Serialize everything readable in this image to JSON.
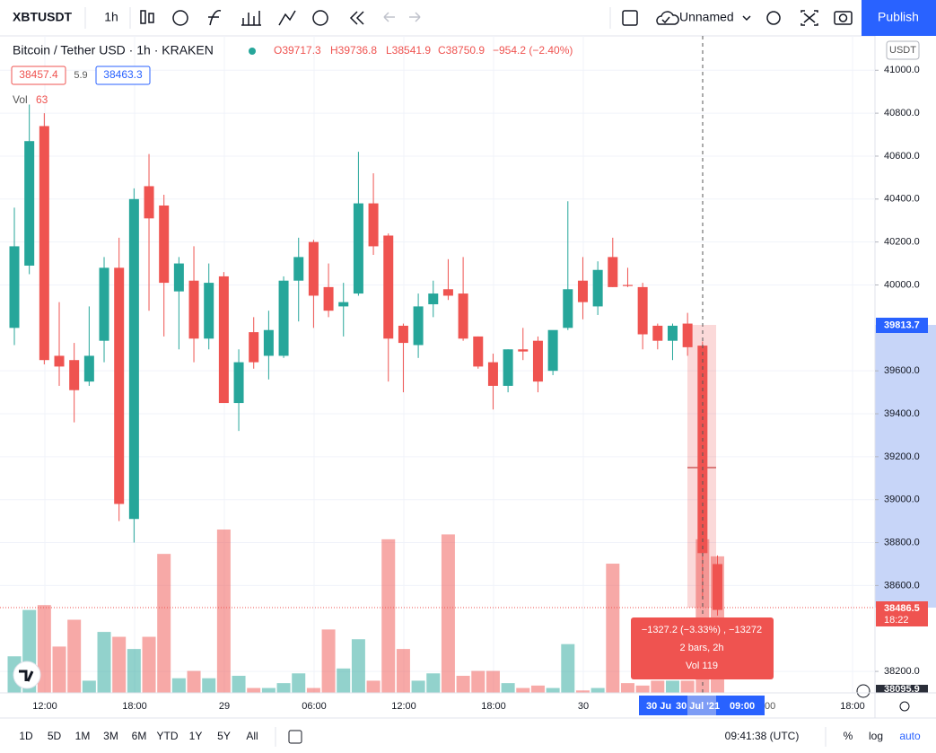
{
  "toolbar": {
    "symbol": "XBTUSDT",
    "interval": "1h",
    "layout": "Unnamed",
    "publish": "Publish"
  },
  "legend": {
    "title": "Bitcoin / Tether USD · 1h · KRAKEN",
    "open": "O39717.3",
    "high": "H39736.8",
    "low": "L38541.9",
    "close": "C38750.9",
    "change": "−954.2 (−2.40%)",
    "bid": "38457.4",
    "spread": "5.9",
    "ask": "38463.3",
    "vol_label": "Vol",
    "vol_value": "63",
    "currency": "USDT"
  },
  "chart_data": {
    "type": "candlestick",
    "up_color": "#26a69a",
    "down_color": "#ef5350",
    "open": [
      39800,
      40090,
      40740,
      39670,
      39650,
      39550,
      39740,
      40080,
      38910,
      40460,
      40370,
      39970,
      40020,
      39750,
      40040,
      39450,
      39780,
      39670,
      39670,
      40020,
      40200,
      39990,
      39900,
      39960,
      40380,
      40230,
      39810,
      39720,
      39910,
      39980,
      39960,
      39760,
      39640,
      39530,
      39700,
      39740,
      39600,
      39800,
      40020,
      39900,
      40130,
      40000,
      39990,
      39810,
      39740,
      39820,
      39717.3,
      38700
    ],
    "high": [
      40360,
      40840,
      40800,
      39920,
      39730,
      39900,
      40130,
      40220,
      40450,
      40610,
      40420,
      40130,
      40180,
      40100,
      40060,
      39700,
      39850,
      39880,
      40040,
      40220,
      40210,
      40100,
      40010,
      40620,
      40520,
      40240,
      39820,
      39960,
      40020,
      40120,
      40130,
      39760,
      39680,
      39700,
      39800,
      39760,
      39780,
      40390,
      40130,
      40110,
      40220,
      40080,
      40010,
      39820,
      39820,
      39870,
      39736.8,
      38740
    ],
    "low": [
      39720,
      40050,
      39630,
      39530,
      39360,
      39530,
      39640,
      38900,
      38800,
      39880,
      39760,
      39700,
      39640,
      39700,
      39460,
      39320,
      39610,
      39560,
      39660,
      39830,
      39800,
      39850,
      39760,
      39950,
      40140,
      39550,
      39500,
      39660,
      39850,
      39930,
      39740,
      39610,
      39420,
      39500,
      39650,
      39500,
      39580,
      39790,
      39840,
      39860,
      39990,
      39990,
      39700,
      39700,
      39650,
      39670,
      38541.9,
      38460
    ],
    "close": [
      40180,
      40670,
      39650,
      39620,
      39510,
      39670,
      40080,
      38980,
      40400,
      40310,
      40010,
      40100,
      39750,
      40010,
      39450,
      39640,
      39640,
      39790,
      40020,
      40130,
      39950,
      39880,
      39920,
      40380,
      40180,
      39750,
      39730,
      39900,
      39960,
      39950,
      39750,
      39620,
      39530,
      39700,
      39690,
      39550,
      39790,
      39980,
      39920,
      40070,
      39990,
      39995,
      39770,
      39740,
      39810,
      39710,
      38750.9,
      38486.5
    ],
    "volume": [
      15,
      34,
      36,
      19,
      30,
      5,
      25,
      23,
      18,
      23,
      57,
      6,
      9,
      6,
      67,
      7,
      2,
      2,
      4,
      8,
      2,
      26,
      10,
      22,
      5,
      63,
      18,
      5,
      8,
      65,
      7,
      9,
      9,
      4,
      2,
      3,
      2,
      20,
      1,
      2,
      53,
      4,
      3,
      5,
      5,
      5,
      63,
      56
    ],
    "ylim": [
      38100,
      41160
    ],
    "yticks": [
      {
        "value": 41000,
        "label": "41000.0"
      },
      {
        "value": 40800,
        "label": "40800.0"
      },
      {
        "value": 40600,
        "label": "40600.0"
      },
      {
        "value": 40400,
        "label": "40400.0"
      },
      {
        "value": 40200,
        "label": "40200.0"
      },
      {
        "value": 40000,
        "label": "40000.0"
      },
      {
        "value": 39600,
        "label": "39600.0"
      },
      {
        "value": 39400,
        "label": "39400.0"
      },
      {
        "value": 39200,
        "label": "39200.0"
      },
      {
        "value": 39000,
        "label": "39000.0"
      },
      {
        "value": 38800,
        "label": "38800.0"
      },
      {
        "value": 38600,
        "label": "38600.0"
      },
      {
        "value": 38200,
        "label": "38200.0"
      }
    ],
    "xticks": [
      "12:00",
      "18:00",
      "29",
      "06:00",
      "12:00",
      "18:00",
      "30",
      "18:00"
    ],
    "grid": true
  },
  "price_labels": {
    "crosshair": "39813.7",
    "last": "38486.5",
    "countdown": "18:22",
    "bottom": "38095.9"
  },
  "time_labels": {
    "left": "30 Ju",
    "crosshair_date": "30 Jul '21",
    "crosshair_time": "09:00",
    "partial": "00"
  },
  "measure": {
    "line1": "−1327.2 (−3.33%) , −13272",
    "line2": "2 bars, 2h",
    "line3": "Vol 119"
  },
  "bottom_bar": {
    "ranges": [
      "1D",
      "5D",
      "1M",
      "3M",
      "6M",
      "YTD",
      "1Y",
      "5Y",
      "All"
    ],
    "clock": "09:41:38 (UTC)",
    "percent": "%",
    "log": "log",
    "auto": "auto"
  }
}
